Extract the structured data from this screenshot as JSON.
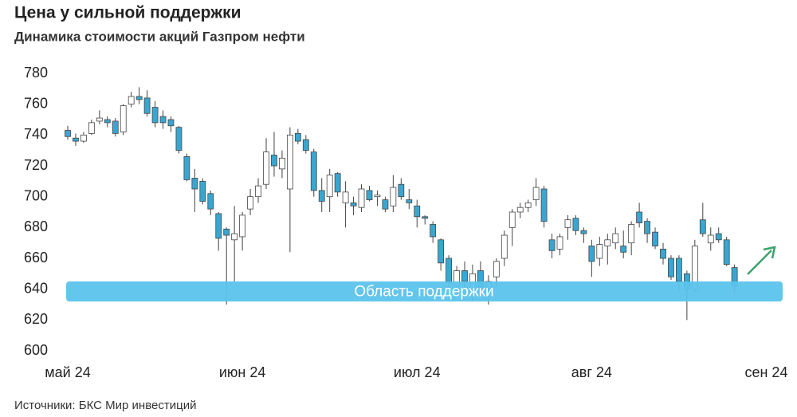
{
  "chart_data": {
    "type": "candlestick",
    "title": "Цена у сильной поддержки",
    "subtitle": "Динамика стоимости акций Газпром нефти",
    "source": "Источники: БКС Мир инвестиций",
    "categories": [
      "май 24",
      null,
      null,
      null,
      null,
      null,
      null,
      null,
      null,
      null,
      null,
      null,
      null,
      null,
      null,
      null,
      null,
      null,
      null,
      null,
      null,
      null,
      "июн 24",
      null,
      null,
      null,
      null,
      null,
      null,
      null,
      null,
      null,
      null,
      null,
      null,
      null,
      null,
      null,
      null,
      null,
      null,
      null,
      null,
      null,
      "июл 24",
      null,
      null,
      null,
      null,
      null,
      null,
      null,
      null,
      null,
      null,
      null,
      null,
      null,
      null,
      null,
      null,
      null,
      null,
      null,
      null,
      null,
      "авг 24",
      null,
      null,
      null,
      null,
      null,
      null,
      null,
      null,
      null,
      null,
      null,
      null,
      null,
      null,
      null,
      null,
      null,
      null,
      null,
      null,
      null,
      "сен 24"
    ],
    "open": [
      743,
      738,
      736,
      741,
      749,
      750,
      749,
      742,
      760,
      765,
      764,
      758,
      752,
      750,
      745,
      726,
      712,
      710,
      702,
      689,
      679,
      672,
      674,
      692,
      700,
      708,
      727,
      718,
      705,
      741,
      737,
      729,
      704,
      700,
      715,
      696,
      696,
      693,
      704,
      700,
      698,
      694,
      708,
      698,
      694,
      687,
      682,
      672,
      660,
      642,
      652,
      640,
      652,
      640,
      648,
      660,
      680,
      690,
      693,
      698,
      705,
      672,
      666,
      680,
      686,
      678,
      668,
      660,
      668,
      670,
      668,
      670,
      690,
      684,
      677,
      666,
      660,
      660,
      650,
      640,
      685,
      670,
      676,
      672,
      654,
      null,
      null,
      null,
      null
    ],
    "high": [
      746,
      741,
      742,
      750,
      756,
      752,
      751,
      760,
      768,
      771,
      769,
      762,
      756,
      752,
      746,
      728,
      718,
      712,
      704,
      690,
      680,
      694,
      690,
      705,
      712,
      738,
      742,
      730,
      745,
      744,
      740,
      731,
      712,
      718,
      716,
      710,
      700,
      708,
      707,
      704,
      700,
      714,
      712,
      705,
      698,
      688,
      684,
      673,
      662,
      655,
      658,
      656,
      658,
      649,
      660,
      678,
      692,
      696,
      698,
      712,
      707,
      676,
      676,
      688,
      688,
      680,
      672,
      674,
      676,
      680,
      678,
      684,
      696,
      686,
      680,
      670,
      662,
      662,
      652,
      672,
      696,
      680,
      680,
      674,
      656,
      null,
      null,
      null,
      null
    ],
    "low": [
      737,
      733,
      735,
      740,
      747,
      745,
      739,
      740,
      758,
      760,
      752,
      745,
      744,
      742,
      728,
      710,
      690,
      695,
      688,
      665,
      630,
      645,
      665,
      688,
      696,
      705,
      713,
      712,
      664,
      734,
      728,
      700,
      690,
      690,
      700,
      680,
      688,
      690,
      697,
      694,
      690,
      690,
      698,
      692,
      680,
      682,
      670,
      652,
      636,
      635,
      640,
      632,
      638,
      630,
      642,
      655,
      668,
      686,
      690,
      694,
      680,
      660,
      662,
      672,
      675,
      670,
      648,
      655,
      656,
      666,
      660,
      662,
      680,
      670,
      666,
      656,
      646,
      638,
      620,
      638,
      674,
      665,
      670,
      655,
      637,
      null,
      null,
      null,
      null
    ],
    "close": [
      739,
      736,
      740,
      748,
      751,
      748,
      741,
      759,
      765,
      763,
      754,
      748,
      748,
      746,
      730,
      711,
      705,
      697,
      692,
      673,
      675,
      676,
      688,
      700,
      707,
      729,
      720,
      725,
      740,
      736,
      730,
      704,
      697,
      714,
      703,
      703,
      694,
      705,
      698,
      701,
      692,
      706,
      700,
      696,
      687,
      686,
      674,
      657,
      644,
      652,
      645,
      650,
      640,
      645,
      658,
      675,
      690,
      693,
      696,
      706,
      684,
      665,
      674,
      685,
      678,
      676,
      658,
      669,
      672,
      676,
      664,
      682,
      683,
      676,
      668,
      660,
      648,
      645,
      640,
      668,
      676,
      675,
      672,
      656,
      642,
      null,
      null,
      null,
      null
    ],
    "up_color": "#ffffff",
    "down_color": "#3aa6d0",
    "ylim": [
      600,
      780
    ],
    "yticks": [
      600,
      620,
      640,
      660,
      680,
      700,
      720,
      740,
      760,
      780
    ],
    "support_zone": {
      "label": "Область поддержки",
      "from": 632,
      "to": 645,
      "color": "#5bc3ec"
    }
  }
}
